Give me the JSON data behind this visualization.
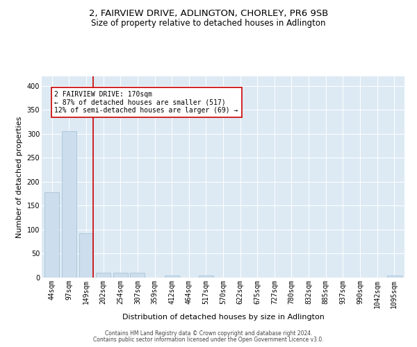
{
  "title": "2, FAIRVIEW DRIVE, ADLINGTON, CHORLEY, PR6 9SB",
  "subtitle": "Size of property relative to detached houses in Adlington",
  "xlabel": "Distribution of detached houses by size in Adlington",
  "ylabel": "Number of detached properties",
  "bar_labels": [
    "44sqm",
    "97sqm",
    "149sqm",
    "202sqm",
    "254sqm",
    "307sqm",
    "359sqm",
    "412sqm",
    "464sqm",
    "517sqm",
    "570sqm",
    "622sqm",
    "675sqm",
    "727sqm",
    "780sqm",
    "832sqm",
    "885sqm",
    "937sqm",
    "990sqm",
    "1042sqm",
    "1095sqm"
  ],
  "bar_values": [
    178,
    305,
    93,
    10,
    10,
    10,
    0,
    4,
    0,
    5,
    0,
    0,
    0,
    0,
    0,
    0,
    0,
    0,
    0,
    0,
    4
  ],
  "bar_color": "#ccdded",
  "bar_edgecolor": "#a8c4d8",
  "grid_color": "#ddeaf4",
  "annotation_text": "2 FAIRVIEW DRIVE: 170sqm\n← 87% of detached houses are smaller (517)\n12% of semi-detached houses are larger (69) →",
  "annotation_box_color": "#ffffff",
  "annotation_box_edgecolor": "#cc0000",
  "red_line_color": "#cc0000",
  "property_bin_index": 2,
  "ylim": [
    0,
    420
  ],
  "yticks": [
    0,
    50,
    100,
    150,
    200,
    250,
    300,
    350,
    400
  ],
  "footnote1": "Contains HM Land Registry data © Crown copyright and database right 2024.",
  "footnote2": "Contains public sector information licensed under the Open Government Licence v3.0.",
  "title_fontsize": 9.5,
  "subtitle_fontsize": 8.5,
  "tick_fontsize": 7,
  "ylabel_fontsize": 8,
  "xlabel_fontsize": 8,
  "annot_fontsize": 7,
  "footnote_fontsize": 5.5
}
